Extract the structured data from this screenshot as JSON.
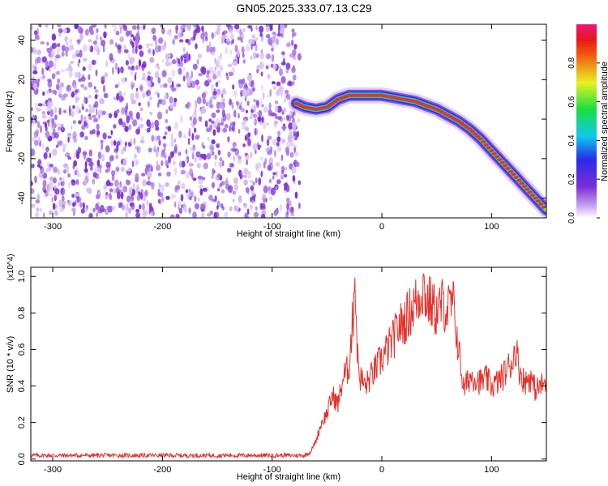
{
  "title": "GN05.2025.333.07.13.C29",
  "colors": {
    "snr_line": "#e8312c",
    "axis": "#000000",
    "noise": "#7b2fd6",
    "ridge": "#e8312c"
  },
  "chart_data": [
    {
      "type": "heatmap",
      "title": "GN05.2025.333.07.13.C29",
      "xlabel": "Height of straight line (km)",
      "ylabel": "Frequency (Hz)",
      "xlim": [
        -320,
        150
      ],
      "ylim": [
        -50,
        48
      ],
      "xticks": [
        -300,
        -200,
        -100,
        0,
        100
      ],
      "yticks": [
        -40,
        -20,
        0,
        20,
        40
      ],
      "colorbar": {
        "label": "Normalized spectral amplitude",
        "range": [
          0.0,
          1.0
        ],
        "ticks": [
          "0.0",
          "0.2",
          "0.4",
          "0.6",
          "0.8"
        ],
        "colormap": "rainbow (purple -> blue -> cyan -> green -> yellow -> red -> magenta)"
      },
      "noise_region_x": [
        -320,
        -75
      ],
      "ridge": {
        "x": [
          -78,
          -70,
          -60,
          -50,
          -40,
          -30,
          -20,
          -10,
          0,
          10,
          20,
          30,
          40,
          50,
          60,
          70,
          80,
          90,
          100,
          110,
          120,
          130,
          140,
          150
        ],
        "y": [
          8,
          6,
          5,
          6,
          10,
          12,
          12,
          12,
          12,
          11,
          10,
          9,
          7,
          5,
          2,
          -1,
          -5,
          -10,
          -16,
          -22,
          -28,
          -34,
          -40,
          -46
        ]
      },
      "grid": false
    },
    {
      "type": "line",
      "xlabel": "Height of straight line (km)",
      "ylabel": "SNR (10 * v/v)",
      "y_multiplier": "(x10^4)",
      "xlim": [
        -320,
        150
      ],
      "ylim": [
        -0.01,
        1.05
      ],
      "xticks": [
        -300,
        -200,
        -100,
        0,
        100
      ],
      "yticks": [
        0.0,
        0.2,
        0.4,
        0.6,
        0.8,
        1.0
      ],
      "grid": false,
      "series": [
        {
          "x": [
            -320,
            -300,
            -250,
            -200,
            -150,
            -100,
            -80,
            -70,
            -65,
            -60,
            -55,
            -50,
            -45,
            -40,
            -35,
            -30,
            -26,
            -25,
            -22,
            -20,
            -15,
            -10,
            -5,
            0,
            5,
            10,
            15,
            20,
            25,
            30,
            35,
            38,
            40,
            45,
            50,
            55,
            60,
            65,
            70,
            72,
            75,
            80,
            85,
            90,
            95,
            100,
            105,
            110,
            115,
            120,
            122,
            125,
            130,
            135,
            140,
            145,
            150
          ],
          "y": [
            0.02,
            0.02,
            0.02,
            0.02,
            0.02,
            0.02,
            0.02,
            0.02,
            0.04,
            0.1,
            0.2,
            0.25,
            0.35,
            0.3,
            0.45,
            0.5,
            0.8,
            1.05,
            0.55,
            0.45,
            0.4,
            0.45,
            0.5,
            0.55,
            0.6,
            0.65,
            0.72,
            0.75,
            0.8,
            0.85,
            0.9,
            0.95,
            0.88,
            0.85,
            0.8,
            0.85,
            0.82,
            0.85,
            0.6,
            0.5,
            0.38,
            0.45,
            0.45,
            0.42,
            0.44,
            0.4,
            0.42,
            0.45,
            0.5,
            0.55,
            0.62,
            0.5,
            0.42,
            0.45,
            0.38,
            0.4,
            0.42
          ]
        }
      ]
    }
  ]
}
